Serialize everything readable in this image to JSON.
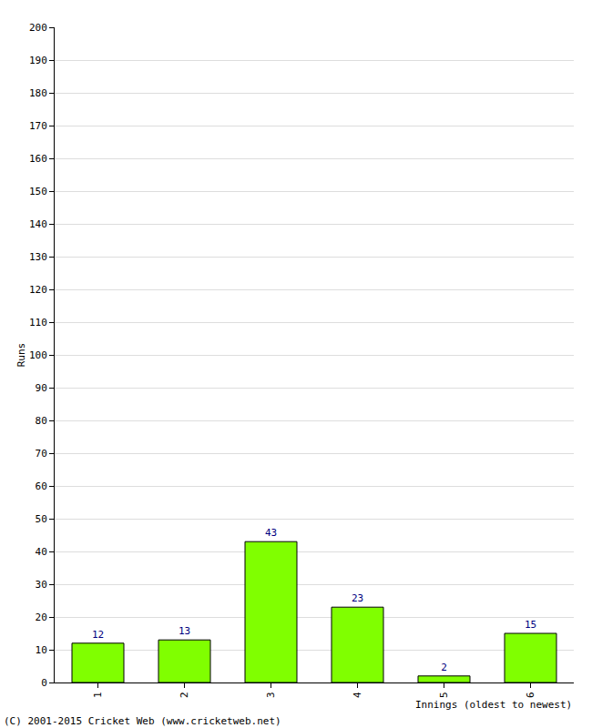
{
  "chart_data": {
    "type": "bar",
    "x_label": "Innings (oldest to newest)",
    "y_label": "Runs",
    "categories": [
      "1",
      "2",
      "3",
      "4",
      "5",
      "6"
    ],
    "values": [
      12,
      13,
      43,
      23,
      2,
      15
    ],
    "color": "#80ff00",
    "ylim": [
      0,
      200
    ],
    "yticks": [
      0,
      10,
      20,
      30,
      40,
      50,
      60,
      70,
      80,
      90,
      100,
      110,
      120,
      130,
      140,
      150,
      160,
      170,
      180,
      190,
      200
    ],
    "grid": true,
    "data_labels": true,
    "annotations": [
      "(C) 2001-2015 Cricket Web (www.cricketweb.net)"
    ]
  }
}
